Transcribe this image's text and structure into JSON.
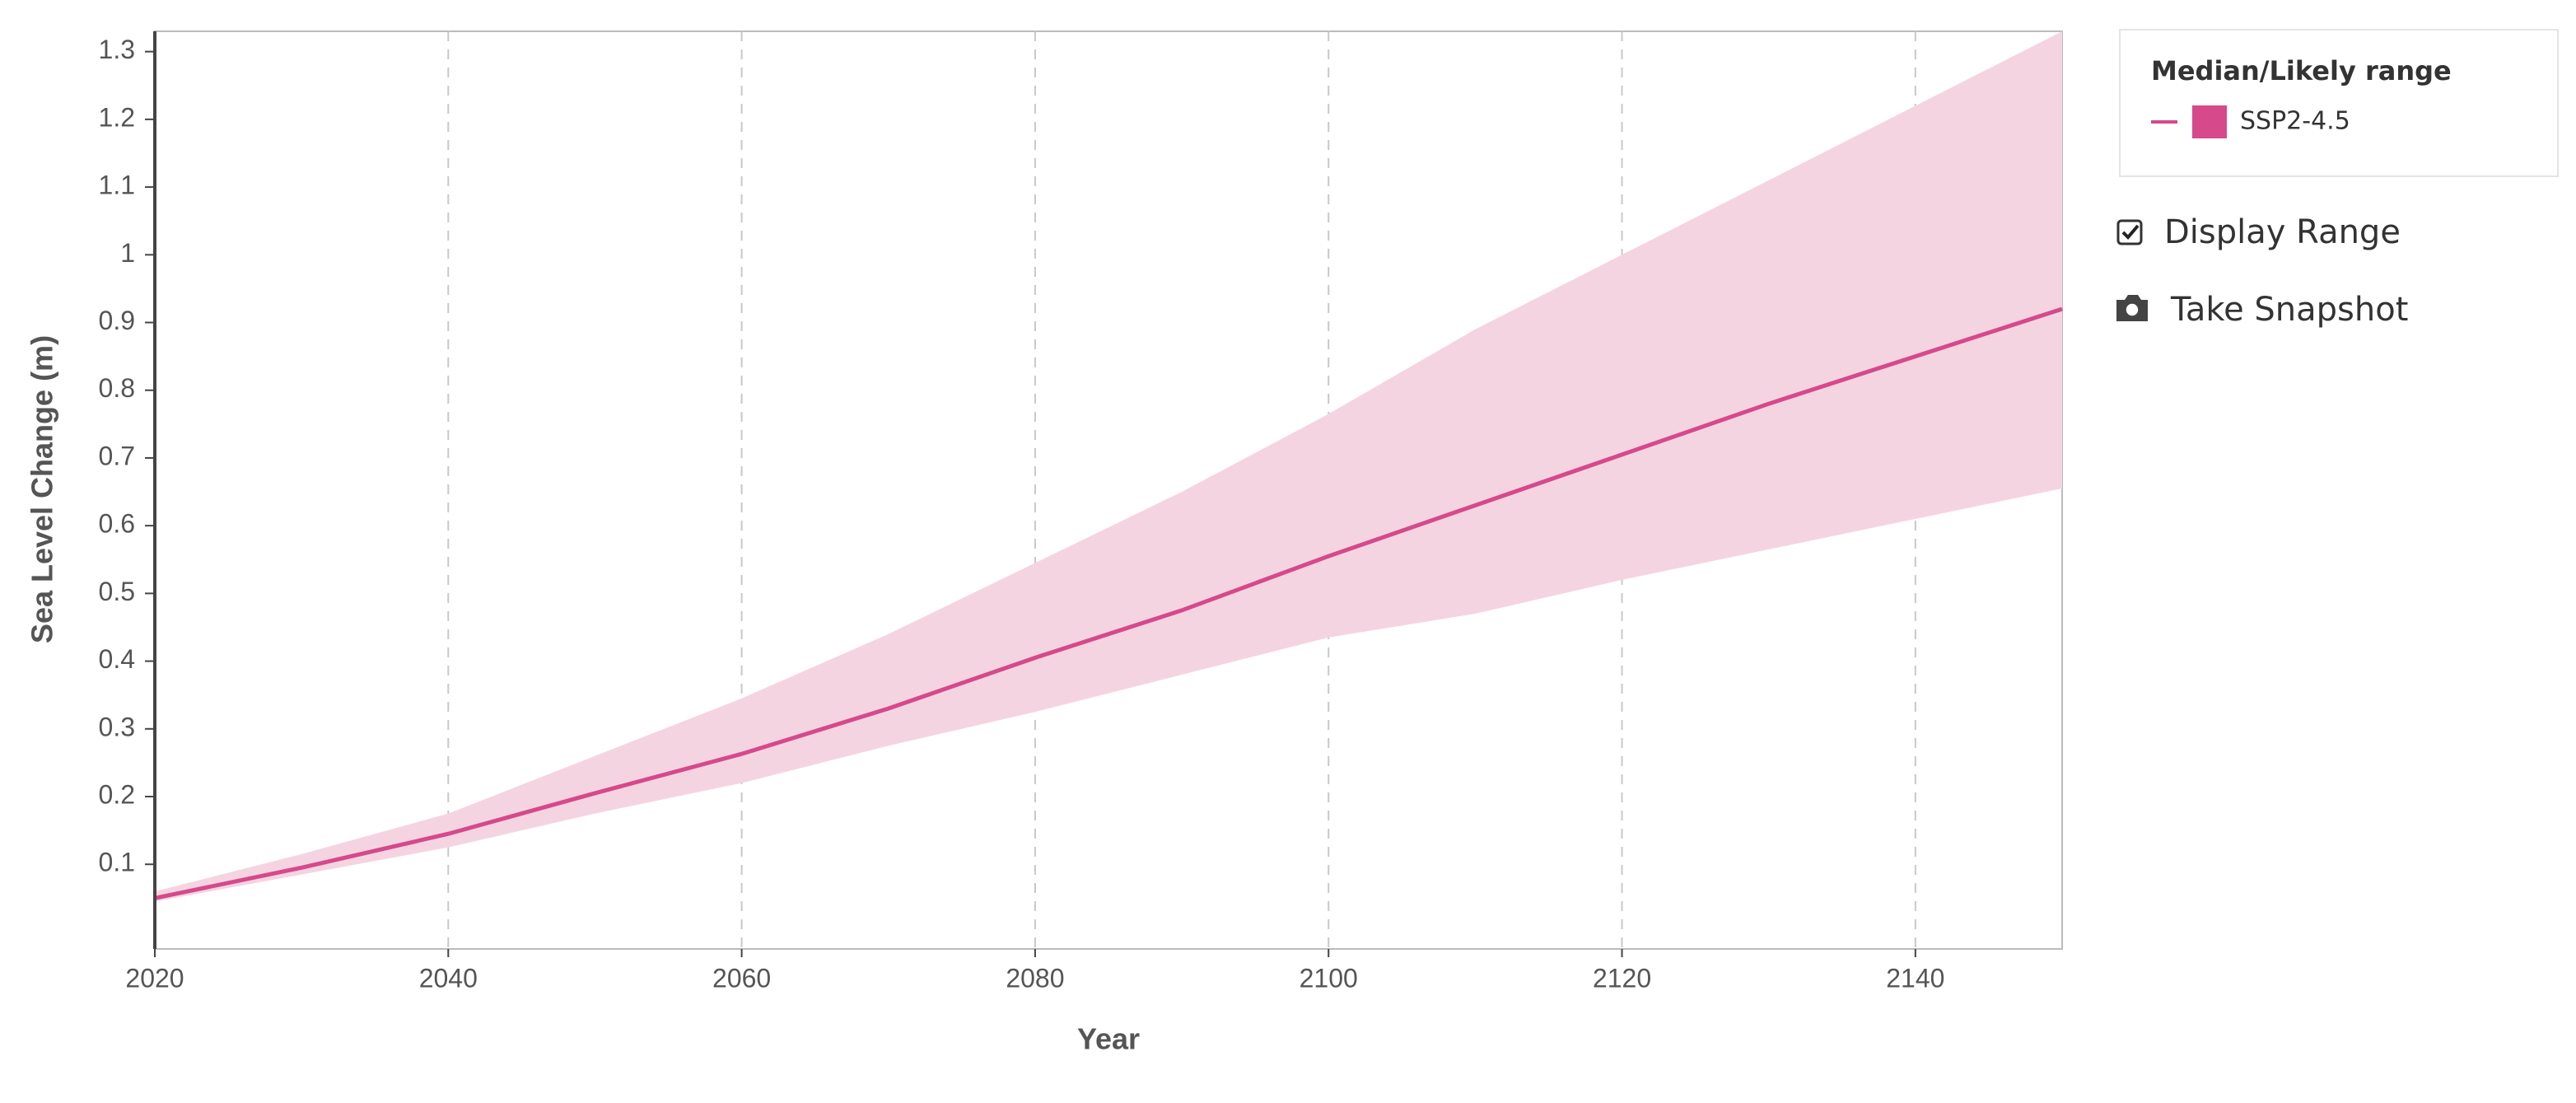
{
  "chart_data": {
    "type": "line",
    "x_label": "Year",
    "y_label": "Sea Level Change (m)",
    "x": [
      2020,
      2030,
      2040,
      2050,
      2060,
      2070,
      2080,
      2090,
      2100,
      2110,
      2120,
      2130,
      2140,
      2150
    ],
    "series": [
      {
        "name": "SSP2-4.5",
        "color": "#d6498a",
        "range_color": "#f5d4e2",
        "values": [
          0.05,
          0.095,
          0.145,
          0.205,
          0.263,
          0.33,
          0.405,
          0.475,
          0.555,
          0.63,
          0.705,
          0.78,
          0.85,
          0.92
        ],
        "upper": [
          0.06,
          0.115,
          0.175,
          0.26,
          0.345,
          0.44,
          0.545,
          0.65,
          0.765,
          0.89,
          1.0,
          1.11,
          1.22,
          1.33
        ],
        "lower": [
          0.045,
          0.085,
          0.125,
          0.175,
          0.22,
          0.275,
          0.325,
          0.38,
          0.435,
          0.47,
          0.52,
          0.565,
          0.61,
          0.655
        ]
      }
    ],
    "xlim": [
      2020,
      2150
    ],
    "ylim": [
      -0.025,
      1.33
    ],
    "xticks": [
      2020,
      2040,
      2060,
      2080,
      2100,
      2120,
      2140
    ],
    "yticks": [
      0.1,
      0.2,
      0.3,
      0.4,
      0.5,
      0.6,
      0.7,
      0.8,
      0.9,
      1.0,
      1.1,
      1.2,
      1.3
    ],
    "x_grid": true,
    "show_range": true,
    "legend_title": "Median/Likely range"
  },
  "controls": {
    "display_range": "Display Range",
    "take_snapshot": "Take Snapshot"
  }
}
